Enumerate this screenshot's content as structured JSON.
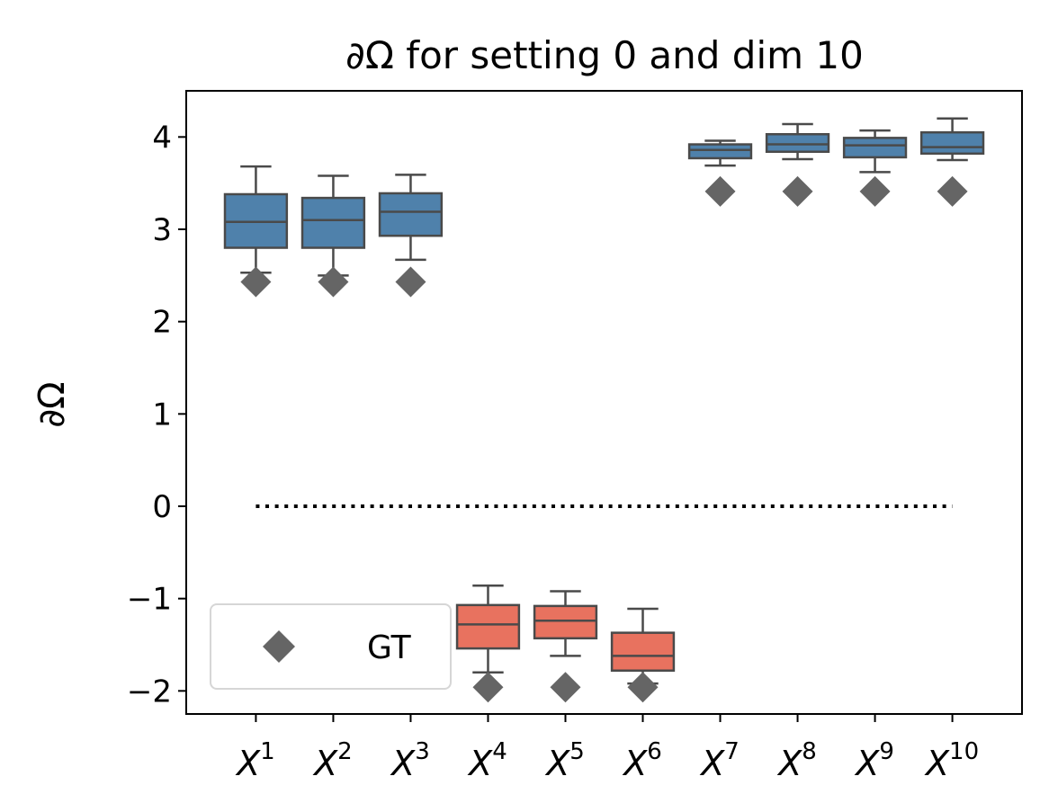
{
  "chart_data": {
    "type": "box",
    "title": "∂Ω for setting 0 and dim 10",
    "ylabel": "∂Ω",
    "xlabel": "",
    "ylim": [
      -2.25,
      4.5
    ],
    "yticks": [
      -2,
      -1,
      0,
      1,
      2,
      3,
      4
    ],
    "ytick_labels": [
      "−2",
      "−1",
      "0",
      "1",
      "2",
      "3",
      "4"
    ],
    "categories": [
      {
        "base": "X",
        "sup": "1"
      },
      {
        "base": "X",
        "sup": "2"
      },
      {
        "base": "X",
        "sup": "3"
      },
      {
        "base": "X",
        "sup": "4"
      },
      {
        "base": "X",
        "sup": "5"
      },
      {
        "base": "X",
        "sup": "6"
      },
      {
        "base": "X",
        "sup": "7"
      },
      {
        "base": "X",
        "sup": "8"
      },
      {
        "base": "X",
        "sup": "9"
      },
      {
        "base": "X",
        "sup": "10"
      }
    ],
    "boxes": [
      {
        "whislo": 2.53,
        "q1": 2.8,
        "med": 3.08,
        "q3": 3.38,
        "whishi": 3.68,
        "color": "#4f81ab"
      },
      {
        "whislo": 2.5,
        "q1": 2.8,
        "med": 3.1,
        "q3": 3.34,
        "whishi": 3.58,
        "color": "#4f81ab"
      },
      {
        "whislo": 2.67,
        "q1": 2.93,
        "med": 3.19,
        "q3": 3.39,
        "whishi": 3.59,
        "color": "#4f81ab"
      },
      {
        "whislo": -1.8,
        "q1": -1.54,
        "med": -1.28,
        "q3": -1.07,
        "whishi": -0.86,
        "color": "#e8725f"
      },
      {
        "whislo": -1.62,
        "q1": -1.43,
        "med": -1.24,
        "q3": -1.08,
        "whishi": -0.92,
        "color": "#e8725f"
      },
      {
        "whislo": -1.92,
        "q1": -1.78,
        "med": -1.62,
        "q3": -1.37,
        "whishi": -1.11,
        "color": "#e8725f"
      },
      {
        "whislo": 3.69,
        "q1": 3.77,
        "med": 3.86,
        "q3": 3.92,
        "whishi": 3.96,
        "color": "#4f81ab"
      },
      {
        "whislo": 3.76,
        "q1": 3.84,
        "med": 3.92,
        "q3": 4.03,
        "whishi": 4.14,
        "color": "#4f81ab"
      },
      {
        "whislo": 3.62,
        "q1": 3.78,
        "med": 3.91,
        "q3": 3.99,
        "whishi": 4.07,
        "color": "#4f81ab"
      },
      {
        "whislo": 3.75,
        "q1": 3.82,
        "med": 3.89,
        "q3": 4.05,
        "whishi": 4.2,
        "color": "#4f81ab"
      }
    ],
    "gt": {
      "name": "GT",
      "values": [
        2.43,
        2.43,
        2.43,
        -1.96,
        -1.96,
        -1.96,
        3.41,
        3.41,
        3.41,
        3.41
      ],
      "color": "#656565",
      "marker": "diamond"
    },
    "reference_line": {
      "y": 0,
      "style": "dotted",
      "color": "#000000"
    },
    "legend": {
      "location": "lower-left",
      "entries": [
        "GT"
      ]
    },
    "grid": false
  }
}
